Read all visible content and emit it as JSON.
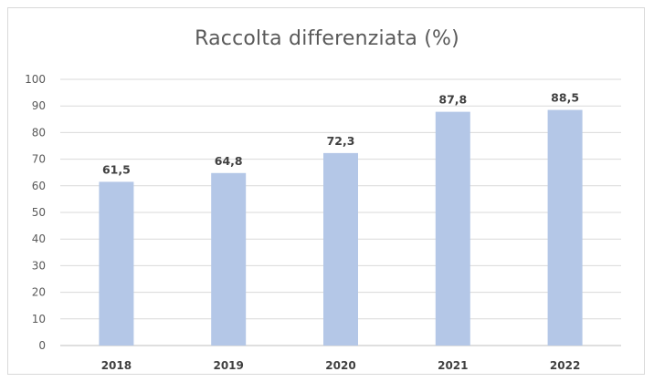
{
  "chart_data": {
    "type": "bar",
    "title": "Raccolta differenziata (%)",
    "xlabel": "",
    "ylabel": "",
    "categories": [
      "2018",
      "2019",
      "2020",
      "2021",
      "2022"
    ],
    "values": [
      61.5,
      64.8,
      72.3,
      87.8,
      88.5
    ],
    "value_labels": [
      "61,5",
      "64,8",
      "72,3",
      "87,8",
      "88,5"
    ],
    "ylim": [
      0,
      100
    ],
    "yticks": [
      "0",
      "10",
      "20",
      "30",
      "40",
      "50",
      "60",
      "70",
      "80",
      "90",
      "100"
    ],
    "grid": true,
    "legend": "none",
    "colors": {
      "bar": "#b4c7e7",
      "grid": "#d9d9d9",
      "text": "#595959"
    }
  }
}
